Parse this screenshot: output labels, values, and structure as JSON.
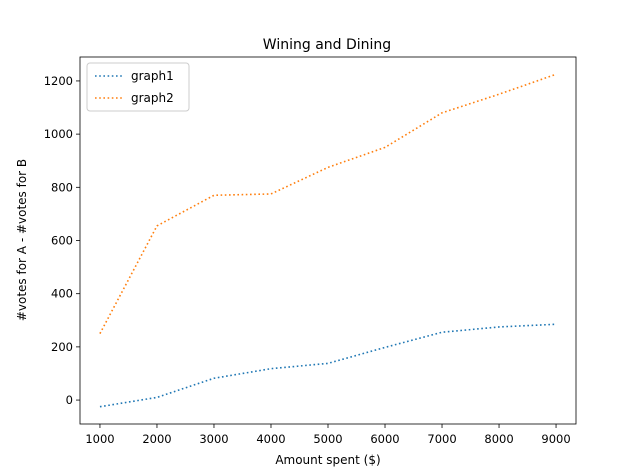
{
  "chart_data": {
    "type": "line",
    "title": "Wining and Dining",
    "xlabel": "Amount spent ($)",
    "ylabel": "#votes for A - #votes for B",
    "x": [
      1000,
      2000,
      3000,
      4000,
      5000,
      6000,
      7000,
      8000,
      9000
    ],
    "xticks": [
      "1000",
      "2000",
      "3000",
      "4000",
      "5000",
      "6000",
      "7000",
      "8000",
      "9000"
    ],
    "yticks": [
      "0",
      "200",
      "400",
      "600",
      "800",
      "1000",
      "1200"
    ],
    "xlim": [
      650,
      9350
    ],
    "ylim": [
      -90,
      1290
    ],
    "line_style": "dotted",
    "grid": false,
    "legend_position": "top-left",
    "series": [
      {
        "name": "graph1",
        "color": "#1f77b4",
        "values": [
          -25,
          10,
          82,
          118,
          138,
          198,
          255,
          275,
          285
        ]
      },
      {
        "name": "graph2",
        "color": "#ff7f0e",
        "values": [
          250,
          655,
          770,
          775,
          875,
          950,
          1080,
          1150,
          1225
        ]
      }
    ]
  }
}
